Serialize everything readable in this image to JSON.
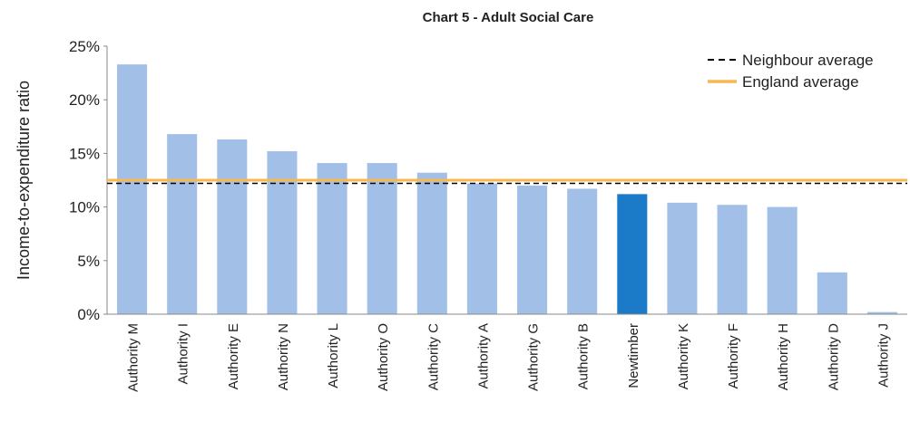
{
  "chart_data": {
    "type": "bar",
    "title": "Chart 5 - Adult Social Care",
    "y_label": "Income-to-expenditure ratio",
    "categories": [
      "Authority M",
      "Authority I",
      "Authority E",
      "Authority N",
      "Authority L",
      "Authority O",
      "Authority C",
      "Authority A",
      "Authority G",
      "Authority B",
      "Newtimber",
      "Authority K",
      "Authority F",
      "Authority H",
      "Authority D",
      "Authority J"
    ],
    "values": [
      23.3,
      16.8,
      16.3,
      15.2,
      14.1,
      14.1,
      13.2,
      12.2,
      12.0,
      11.7,
      11.2,
      10.4,
      10.2,
      10.0,
      3.9,
      0.2
    ],
    "colors": [
      "#a2c0e7",
      "#a2c0e7",
      "#a2c0e7",
      "#a2c0e7",
      "#a2c0e7",
      "#a2c0e7",
      "#a2c0e7",
      "#a2c0e7",
      "#a2c0e7",
      "#a2c0e7",
      "#1b7bc8",
      "#a2c0e7",
      "#a2c0e7",
      "#a2c0e7",
      "#a2c0e7",
      "#a2c0e7"
    ],
    "reference_lines": [
      {
        "name": "Neighbour average",
        "value": 12.2,
        "color": "#000000",
        "style": "dashed"
      },
      {
        "name": "England average",
        "value": 12.5,
        "color": "#f8b850",
        "style": "solid"
      }
    ],
    "legend": "upper right",
    "ylim": [
      0,
      25
    ],
    "yticks": [
      {
        "value": 0,
        "label": "0%"
      },
      {
        "value": 5,
        "label": "5%"
      },
      {
        "value": 10,
        "label": "10%"
      },
      {
        "value": 15,
        "label": "15%"
      },
      {
        "value": 20,
        "label": "20%"
      },
      {
        "value": 25,
        "label": "25%"
      }
    ]
  }
}
